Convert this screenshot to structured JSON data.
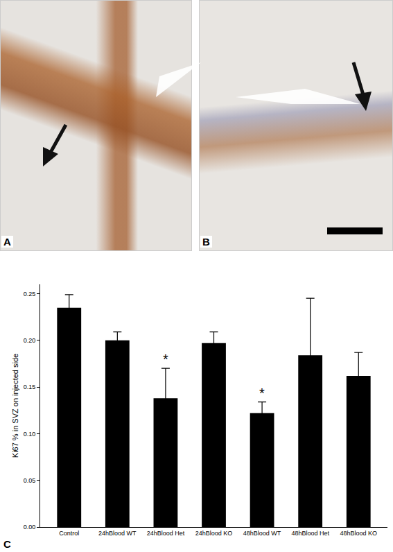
{
  "chart_data": {
    "type": "bar",
    "panel_labels": [
      "A",
      "B",
      "C"
    ],
    "y_label": "Ki67 % in SVZ on injected side",
    "categories": [
      "Control",
      "24hBlood WT",
      "24hBlood Het",
      "24hBlood KO",
      "48hBlood WT",
      "48hBlood Het",
      "48hBlood KO"
    ],
    "values": [
      0.235,
      0.2,
      0.138,
      0.197,
      0.122,
      0.184,
      0.162
    ],
    "errors": [
      0.014,
      0.009,
      0.032,
      0.012,
      0.012,
      0.061,
      0.025
    ],
    "color": "#000000",
    "ylim": [
      0,
      0.26
    ],
    "yticks": [
      {
        "value": 0,
        "label": "0.00"
      },
      {
        "value": 0.05,
        "label": "0.05"
      },
      {
        "value": 0.1,
        "label": "0.10"
      },
      {
        "value": 0.15,
        "label": "0.15"
      },
      {
        "value": 0.2,
        "label": "0.20"
      },
      {
        "value": 0.25,
        "label": "0.25"
      }
    ],
    "annotations": [
      {
        "text": "*",
        "category": "24hBlood Het"
      },
      {
        "text": "*",
        "category": "48hBlood WT"
      }
    ],
    "grid": false
  }
}
